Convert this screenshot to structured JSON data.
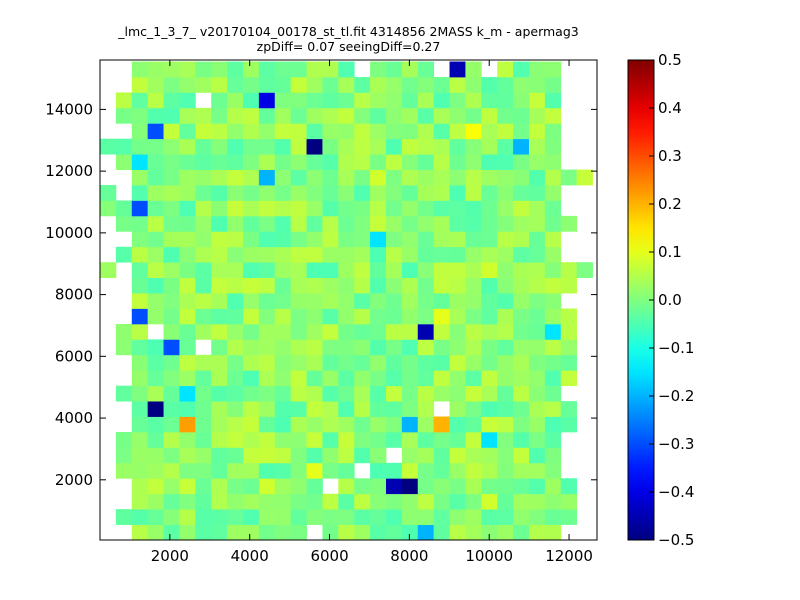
{
  "chart_data": {
    "type": "heatmap",
    "title_line1": "_lmc_1_3_7_ v20170104_00178_st_tl.fit 4314856 2MASS k_m - apermag3",
    "title_line2": "zpDiff= 0.07 seeingDiff=0.27",
    "xlabel": "",
    "ylabel": "",
    "xlim": [
      250,
      12700
    ],
    "ylim": [
      50,
      15600
    ],
    "x_ticks": [
      2000,
      4000,
      6000,
      8000,
      10000,
      12000
    ],
    "y_ticks": [
      2000,
      4000,
      6000,
      8000,
      10000,
      12000,
      14000
    ],
    "x_tick_labels": [
      "2000",
      "4000",
      "6000",
      "8000",
      "10000",
      "12000"
    ],
    "y_tick_labels": [
      "2000",
      "4000",
      "6000",
      "8000",
      "10000",
      "12000",
      "14000"
    ],
    "colorbar": {
      "min": -0.5,
      "max": 0.5,
      "ticks": [
        0.5,
        0.4,
        0.3,
        0.2,
        0.1,
        0.0,
        -0.1,
        -0.2,
        -0.3,
        -0.4,
        -0.5
      ],
      "tick_labels": [
        "0.5",
        "0.4",
        "0.3",
        "0.2",
        "0.1",
        "0.0",
        "−0.1",
        "−0.2",
        "−0.3",
        "−0.4",
        "−0.5"
      ],
      "colormap": "jet"
    },
    "grid": {
      "x0": 250,
      "dx": 398,
      "cols": 31,
      "y0": 50,
      "dy": 500,
      "rows": 31
    },
    "outliers": [
      {
        "x": 1650,
        "y": 4200,
        "value": -0.5
      },
      {
        "x": 5550,
        "y": 12950,
        "value": -0.5
      },
      {
        "x": 7900,
        "y": 1800,
        "value": -0.5
      },
      {
        "x": 7500,
        "y": 1800,
        "value": -0.45
      },
      {
        "x": 8300,
        "y": 6700,
        "value": -0.45
      },
      {
        "x": 9400,
        "y": 15500,
        "value": -0.45
      },
      {
        "x": 4600,
        "y": 14500,
        "value": -0.4
      },
      {
        "x": 1250,
        "y": 10700,
        "value": -0.3
      },
      {
        "x": 1250,
        "y": 7200,
        "value": -0.3
      },
      {
        "x": 2050,
        "y": 6200,
        "value": -0.3
      },
      {
        "x": 1650,
        "y": 13500,
        "value": -0.3
      },
      {
        "x": 4250,
        "y": 11700,
        "value": -0.2
      },
      {
        "x": 7850,
        "y": 3700,
        "value": -0.2
      },
      {
        "x": 8250,
        "y": 300,
        "value": -0.2
      },
      {
        "x": 10600,
        "y": 13000,
        "value": -0.2
      },
      {
        "x": 2450,
        "y": 4700,
        "value": -0.15
      },
      {
        "x": 11600,
        "y": 6700,
        "value": -0.15
      },
      {
        "x": 1250,
        "y": 12200,
        "value": -0.15
      },
      {
        "x": 7050,
        "y": 9700,
        "value": -0.15
      },
      {
        "x": 9900,
        "y": 3200,
        "value": -0.15
      },
      {
        "x": 2450,
        "y": 3700,
        "value": 0.22
      },
      {
        "x": 8650,
        "y": 3700,
        "value": 0.2
      },
      {
        "x": 9500,
        "y": 13500,
        "value": 0.12
      },
      {
        "x": 8650,
        "y": 7200,
        "value": 0.1
      },
      {
        "x": 7400,
        "y": 12000,
        "value": 0.08
      },
      {
        "x": 9850,
        "y": 8700,
        "value": 0.08
      },
      {
        "x": 5500,
        "y": 2200,
        "value": 0.1
      },
      {
        "x": 4300,
        "y": 1700,
        "value": 0.08
      },
      {
        "x": 9850,
        "y": 1200,
        "value": 0.08
      }
    ],
    "empty_cells": [
      {
        "x": 2850,
        "y": 14500
      },
      {
        "x": 2850,
        "y": 6200
      },
      {
        "x": 8650,
        "y": 4200
      },
      {
        "x": 7500,
        "y": 2700
      },
      {
        "x": 5900,
        "y": 1700
      },
      {
        "x": 6700,
        "y": 2200
      },
      {
        "x": 5500,
        "y": 300
      },
      {
        "x": 1650,
        "y": 6700
      },
      {
        "x": 6700,
        "y": 15500
      },
      {
        "x": 9850,
        "y": 15500
      },
      {
        "x": 8650,
        "y": 15500
      }
    ]
  }
}
